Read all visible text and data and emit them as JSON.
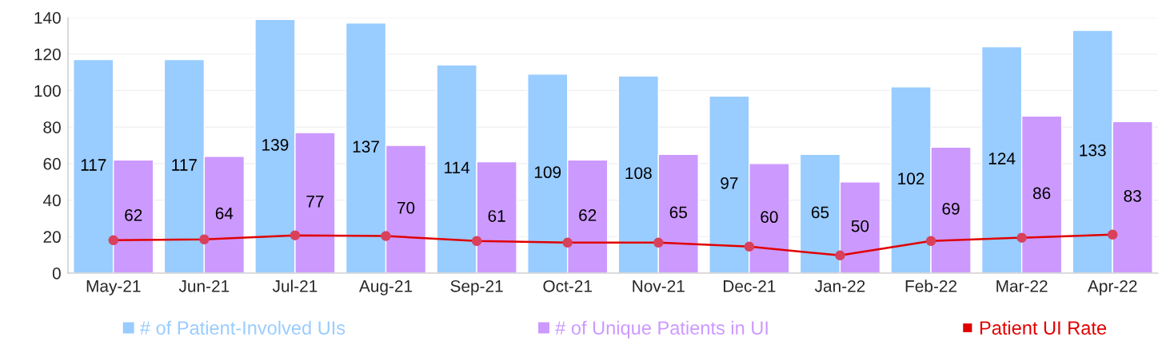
{
  "chart_data": {
    "type": "bar",
    "categories": [
      "May-21",
      "Jun-21",
      "Jul-21",
      "Aug-21",
      "Sep-21",
      "Oct-21",
      "Nov-21",
      "Dec-21",
      "Jan-22",
      "Feb-22",
      "Mar-22",
      "Apr-22"
    ],
    "series": [
      {
        "name": "# of Patient-Involved UIs",
        "color": "#99ccff",
        "values": [
          117,
          117,
          139,
          137,
          114,
          109,
          108,
          97,
          65,
          102,
          124,
          133
        ],
        "value_labels": [
          "117",
          "117",
          "139",
          "137",
          "114",
          "109",
          "108",
          "97",
          "65",
          "102",
          "124",
          "133"
        ]
      },
      {
        "name": "# of Unique Patients in UI",
        "color": "#cc99ff",
        "values": [
          62,
          64,
          77,
          70,
          61,
          62,
          65,
          60,
          50,
          69,
          86,
          83
        ],
        "value_labels": [
          "62",
          "64",
          "77",
          "70",
          "61",
          "62",
          "65",
          "60",
          "50",
          "69",
          "86",
          "83"
        ]
      },
      {
        "name": "Patient UI Rate",
        "type": "line",
        "color": "#e00000",
        "marker": "circle",
        "values": [
          18,
          18.5,
          20.7,
          20.3,
          17.6,
          16.7,
          16.7,
          14.5,
          9.7,
          17.6,
          19.4,
          21.1
        ]
      }
    ],
    "ylim": [
      0,
      140
    ],
    "yticks": [
      0,
      20,
      40,
      60,
      80,
      100,
      120,
      140
    ],
    "grid": "y",
    "legend": "bottom"
  }
}
